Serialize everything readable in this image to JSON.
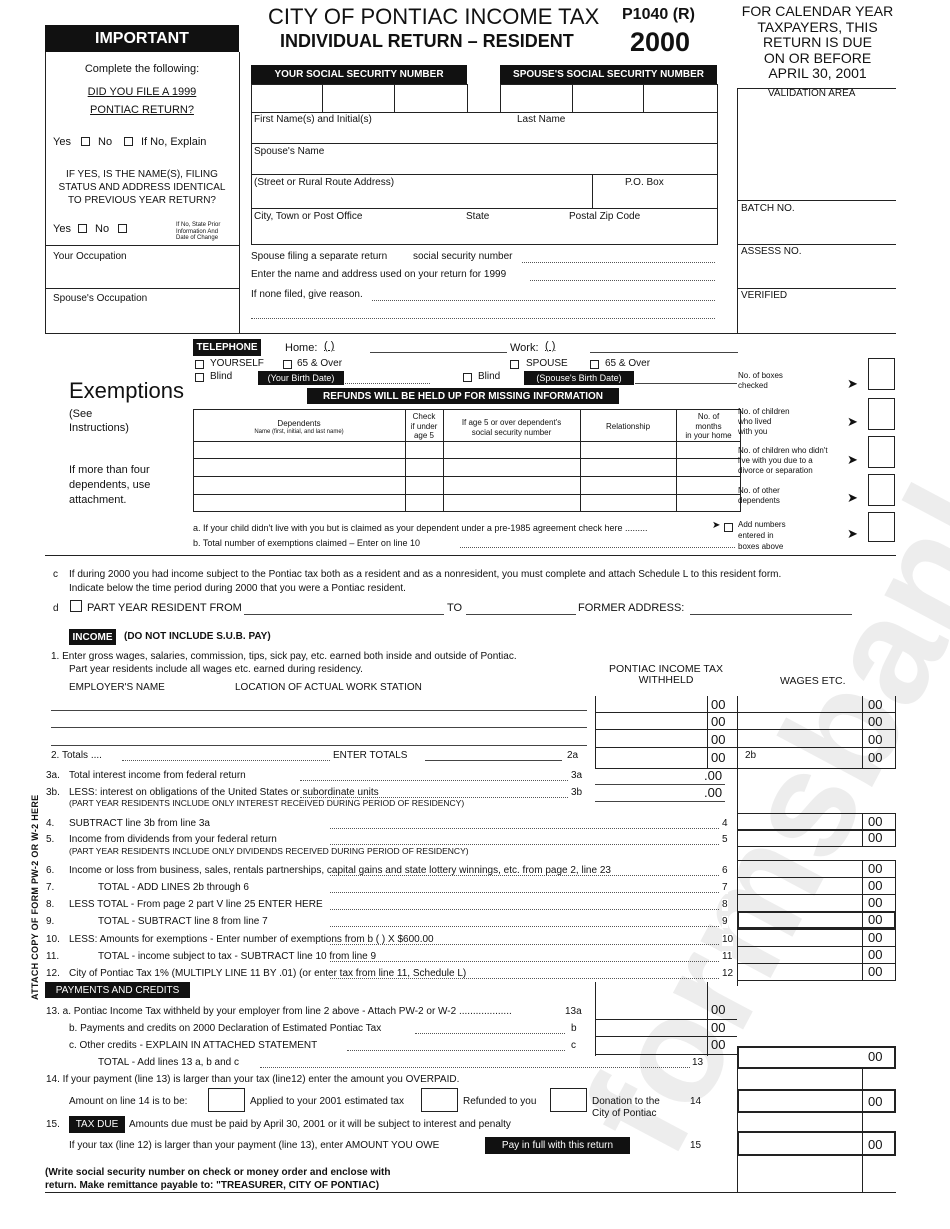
{
  "header": {
    "title": "CITY OF PONTIAC INCOME TAX",
    "subtitle": "INDIVIDUAL RETURN – RESIDENT",
    "form_id": "P1040 (R)",
    "year": "2000",
    "due_lines": [
      "FOR CALENDAR YEAR",
      "TAXPAYERS, THIS",
      "RETURN IS DUE",
      "ON OR BEFORE",
      "APRIL 30, 2001"
    ]
  },
  "important": {
    "heading": "IMPORTANT",
    "complete": "Complete the following:",
    "q1_lines": [
      "DID YOU FILE A 1999",
      "PONTIAC RETURN?"
    ],
    "yes": "Yes",
    "no": "No",
    "explain": "If No, Explain",
    "q2_lines": [
      "IF YES, IS THE NAME(S), FILING",
      "STATUS AND ADDRESS IDENTICAL",
      "TO PREVIOUS YEAR RETURN?"
    ],
    "note_lines": [
      "If No, State Prior",
      "Information And",
      "Date of Change"
    ],
    "your_occupation": "Your Occupation",
    "spouse_occupation": "Spouse's Occupation"
  },
  "ssn": {
    "yours": "YOUR SOCIAL SECURITY NUMBER",
    "spouse": "SPOUSE'S SOCIAL SECURITY NUMBER"
  },
  "name_block": {
    "first_name": "First Name(s) and Initial(s)",
    "last_name": "Last Name",
    "spouse_name": "Spouse's Name",
    "street": "(Street or Rural Route Address)",
    "po_box": "P.O. Box",
    "city": "City, Town or Post Office",
    "state": "State",
    "zip": "Postal Zip Code",
    "spouse_separate": "Spouse filing a separate return",
    "ssn_label": "social security number",
    "prior_name": "Enter the name and address used on your return for 1999",
    "none_filed": "If none filed, give reason."
  },
  "office": {
    "validation": "VALIDATION AREA",
    "batch": "BATCH NO.",
    "assess": "ASSESS NO.",
    "verified": "VERIFIED"
  },
  "telephone": {
    "label": "TELEPHONE",
    "home": "Home:",
    "work": "Work:",
    "parens": "(        )"
  },
  "exemptions": {
    "title": "Exemptions",
    "see_lines": [
      "(See",
      "Instructions)"
    ],
    "more_lines": [
      "If more than four",
      "dependents, use",
      "attachment."
    ],
    "yourself": "YOURSELF",
    "over65": "65 & Over",
    "blind": "Blind",
    "spouse": "SPOUSE",
    "your_birth": "(Your Birth Date)",
    "spouse_birth": "(Spouse's Birth Date)",
    "refunds_banner": "REFUNDS WILL BE HELD UP FOR MISSING INFORMATION",
    "columns": {
      "dependents": "Dependents",
      "dependents_sub": "Name (first, initial, and last name)",
      "under5": [
        "Check",
        "if under",
        "age 5"
      ],
      "ssn": [
        "If age 5 or over dependent's",
        "social security number"
      ],
      "relationship": "Relationship",
      "months": [
        "No. of",
        "months",
        "in your home"
      ]
    },
    "side_labels": [
      [
        "No. of boxes",
        "checked"
      ],
      [
        "No. of children",
        "who lived",
        "with you"
      ],
      [
        "No. of children who didn't",
        "live with you due to a",
        "divorce or separation"
      ],
      [
        "No. of other",
        "dependents"
      ],
      [
        "Add numbers",
        "entered in",
        "boxes above"
      ]
    ],
    "line_a": "a. If your child didn't live with you but is claimed as your dependent under a pre-1985 agreement check here .........",
    "line_b": "b. Total number of exemptions claimed – Enter on line 10"
  },
  "residency": {
    "c_label": "c",
    "c_line1": "If during 2000 you had income subject to the Pontiac tax both as a resident and as a nonresident, you must complete and attach Schedule L to this resident form.",
    "c_line2": "Indicate below the time period during 2000 that you were a Pontiac resident.",
    "d_label": "d",
    "part_year": "PART YEAR RESIDENT FROM",
    "to": "TO",
    "former": "FORMER ADDRESS:"
  },
  "income": {
    "label": "INCOME",
    "note": "(DO NOT INCLUDE S.U.B. PAY)",
    "line1a": "1.  Enter gross wages, salaries, commission, tips, sick pay, etc. earned both inside and outside of Pontiac.",
    "line1b": "Part year residents include all wages etc. earned during residency.",
    "col_withheld": [
      "PONTIAC INCOME TAX",
      "WITHHELD"
    ],
    "col_wages": "WAGES ETC.",
    "employer": "EMPLOYER'S NAME",
    "location": "LOCATION OF ACTUAL WORK STATION",
    "cents": "00",
    "cents_dot": ".00",
    "line2": "2.  Totals ....",
    "enter_totals": "ENTER TOTALS",
    "ref_2a": "2a",
    "ref_2b": "2b",
    "lines": [
      {
        "num": "3a.",
        "text": "Total interest income from federal return",
        "ref": "3a"
      },
      {
        "num": "3b.",
        "text": "LESS: interest on obligations of the United States or subordinate units",
        "ref": "3b"
      },
      {
        "num": "",
        "text": "(PART YEAR RESIDENTS INCLUDE ONLY INTEREST RECEIVED DURING PERIOD OF RESIDENCY)",
        "ref": ""
      },
      {
        "num": "4.",
        "text": "SUBTRACT line 3b from line 3a",
        "ref": "4"
      },
      {
        "num": "5.",
        "text": "Income from dividends from your federal return",
        "ref": "5"
      },
      {
        "num": "",
        "text": "(PART YEAR RESIDENTS INCLUDE ONLY DIVIDENDS RECEIVED DURING PERIOD OF RESIDENCY)",
        "ref": ""
      },
      {
        "num": "6.",
        "text": "Income or loss from business, sales, rentals partnerships, capital gains and state lottery winnings, etc. from page 2, line 23",
        "ref": "6"
      },
      {
        "num": "7.",
        "text": "TOTAL - ADD LINES 2b through 6",
        "ref": "7"
      },
      {
        "num": "8.",
        "text": "LESS TOTAL - From page 2 part V line 25 ENTER HERE",
        "ref": "8"
      },
      {
        "num": "9.",
        "text": "TOTAL - SUBTRACT line 8 from line 7",
        "ref": "9"
      },
      {
        "num": "10.",
        "text": "LESS: Amounts for exemptions - Enter number of exemptions from b (        ) X $600.00",
        "ref": "10"
      },
      {
        "num": "11.",
        "text": "TOTAL - income subject to tax - SUBTRACT line 10 from line 9",
        "ref": "11"
      },
      {
        "num": "12.",
        "text": "City of Pontiac Tax 1% (MULTIPLY LINE 11 BY .01) (or enter tax from line 11, Schedule L)",
        "ref": "12"
      }
    ],
    "attach_note": "ATTACH COPY OF FORM PW-2 OR W-2 HERE"
  },
  "payments": {
    "label": "PAYMENTS AND CREDITS",
    "l13a": "13.   a. Pontiac Income Tax withheld by your employer from line 2 above - Attach PW-2 or W-2 ...................",
    "r13a": "13a",
    "l13b": "b. Payments and credits on 2000 Declaration of Estimated Pontiac Tax",
    "r13b": "b",
    "l13c": "c. Other credits - EXPLAIN IN ATTACHED STATEMENT",
    "r13c": "c",
    "l13": "TOTAL - Add lines 13 a, b and c",
    "r13": "13",
    "l14": "14.   If your payment (line 13) is larger than your tax (line12) enter the amount you OVERPAID.",
    "amount14": "Amount on line 14 is to be:",
    "applied": "Applied to your 2001 estimated tax",
    "refunded": "Refunded to you",
    "donation": [
      "Donation to the",
      "City of Pontiac"
    ],
    "r14": "14",
    "num15": "15.",
    "tax_due": "TAX DUE",
    "l15a": "Amounts due must be paid by April 30, 2001 or it will be subject to interest and penalty",
    "l15b": "If your tax (line 12) is larger than your payment (line 13), enter AMOUNT YOU OWE",
    "pay_full": "Pay in full with this return",
    "r15": "15",
    "remit_lines": [
      "(Write social security number on check or money order and enclose with",
      "return. Make remittance payable to: \"TREASURER, CITY OF PONTIAC)"
    ]
  },
  "watermark": "formsbank.com"
}
